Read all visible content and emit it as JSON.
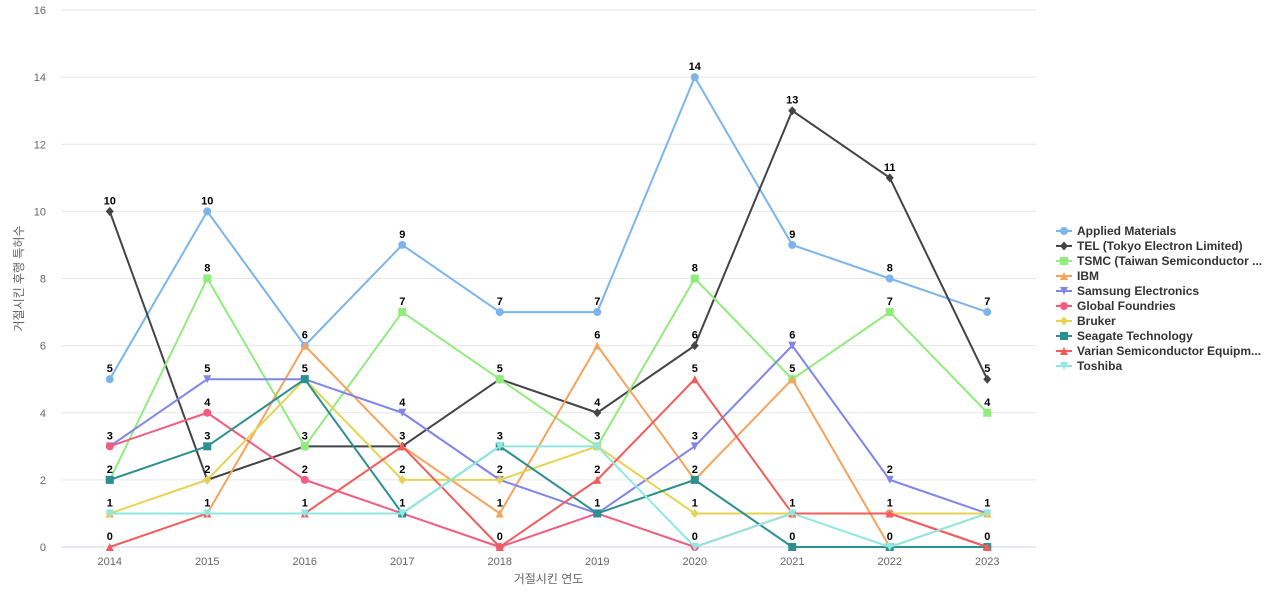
{
  "chart_data": {
    "type": "line",
    "title": "",
    "xlabel": "거절시킨 연도",
    "ylabel": "거절시킨 후행 특허수",
    "categories": [
      "2014",
      "2015",
      "2016",
      "2017",
      "2018",
      "2019",
      "2020",
      "2021",
      "2022",
      "2023"
    ],
    "ylim": [
      0,
      16
    ],
    "yticks": [
      0,
      2,
      4,
      6,
      8,
      10,
      12,
      14,
      16
    ],
    "grid": true,
    "legend_position": "right",
    "series": [
      {
        "name": "Applied Materials",
        "color": "#7cb5ec",
        "marker": "circle",
        "values": [
          5,
          10,
          6,
          9,
          7,
          7,
          14,
          9,
          8,
          7
        ]
      },
      {
        "name": "TEL (Tokyo Electron Limited)",
        "color": "#434348",
        "marker": "diamond",
        "values": [
          10,
          2,
          3,
          3,
          5,
          4,
          6,
          13,
          11,
          5
        ]
      },
      {
        "name": "TSMC (Taiwan Semiconductor ...",
        "color": "#90ed7d",
        "marker": "square",
        "values": [
          2,
          8,
          3,
          7,
          5,
          3,
          8,
          5,
          7,
          4
        ]
      },
      {
        "name": "IBM",
        "color": "#f7a35c",
        "marker": "triangle",
        "values": [
          1,
          1,
          6,
          3,
          1,
          6,
          2,
          5,
          0,
          1
        ]
      },
      {
        "name": "Samsung Electronics",
        "color": "#8085e9",
        "marker": "triangle-down",
        "values": [
          3,
          5,
          5,
          4,
          2,
          1,
          3,
          6,
          2,
          1
        ]
      },
      {
        "name": "Global Foundries",
        "color": "#f15c80",
        "marker": "circle",
        "values": [
          3,
          4,
          2,
          1,
          0,
          1,
          0,
          1,
          1,
          0
        ]
      },
      {
        "name": "Bruker",
        "color": "#e4d354",
        "marker": "diamond",
        "values": [
          1,
          2,
          5,
          2,
          2,
          3,
          1,
          1,
          1,
          1
        ]
      },
      {
        "name": "Seagate Technology",
        "color": "#2b908f",
        "marker": "square",
        "values": [
          2,
          3,
          5,
          1,
          3,
          1,
          2,
          0,
          0,
          0
        ]
      },
      {
        "name": "Varian Semiconductor Equipm...",
        "color": "#f45b5b",
        "marker": "triangle",
        "values": [
          0,
          1,
          1,
          3,
          0,
          2,
          5,
          1,
          1,
          0
        ]
      },
      {
        "name": "Toshiba",
        "color": "#91e8e1",
        "marker": "triangle-down",
        "values": [
          1,
          1,
          1,
          1,
          3,
          3,
          0,
          1,
          0,
          1
        ]
      }
    ],
    "data_labels": [
      {
        "category": "2014",
        "texts": [
          "10",
          "5",
          "3",
          "2",
          "1",
          "0"
        ]
      },
      {
        "category": "2015",
        "texts": [
          "10",
          "8",
          "5",
          "4",
          "3",
          "2",
          "1"
        ]
      },
      {
        "category": "2016",
        "texts": [
          "6",
          "5",
          "3",
          "2",
          "1"
        ]
      },
      {
        "category": "2017",
        "texts": [
          "9",
          "7",
          "4",
          "3",
          "2",
          "1"
        ]
      },
      {
        "category": "2018",
        "texts": [
          "7",
          "5",
          "3",
          "2",
          "1",
          "0"
        ]
      },
      {
        "category": "2019",
        "texts": [
          "7",
          "6",
          "4",
          "3",
          "2",
          "1"
        ]
      },
      {
        "category": "2020",
        "texts": [
          "14",
          "8",
          "6",
          "5",
          "3",
          "2",
          "1",
          "0"
        ]
      },
      {
        "category": "2021",
        "texts": [
          "13",
          "9",
          "6",
          "5",
          "1",
          "0"
        ]
      },
      {
        "category": "2022",
        "texts": [
          "11",
          "8",
          "7",
          "2",
          "1",
          "0"
        ]
      },
      {
        "category": "2023",
        "texts": [
          "7",
          "5",
          "4",
          "1",
          "0"
        ]
      }
    ]
  }
}
